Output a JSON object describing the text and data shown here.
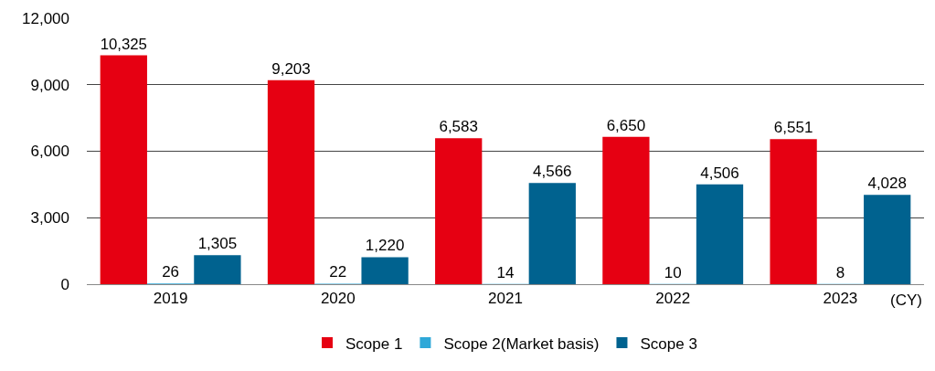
{
  "chart_data": {
    "type": "bar",
    "categories": [
      "2019",
      "2020",
      "2021",
      "2022",
      "2023"
    ],
    "series": [
      {
        "name": "Scope 1",
        "color": "#e60012",
        "values": [
          10325,
          9203,
          6583,
          6650,
          6551
        ],
        "value_labels": [
          "10,325",
          "9,203",
          "6,583",
          "6,650",
          "6,551"
        ]
      },
      {
        "name": "Scope 2(Market basis)",
        "color": "#2fa8d8",
        "values": [
          26,
          22,
          14,
          10,
          8
        ],
        "value_labels": [
          "26",
          "22",
          "14",
          "10",
          "8"
        ]
      },
      {
        "name": "Scope 3",
        "color": "#00628f",
        "values": [
          1305,
          1220,
          4566,
          4506,
          4028
        ],
        "value_labels": [
          "1,305",
          "1,220",
          "4,566",
          "4,506",
          "4,028"
        ]
      }
    ],
    "ylim": [
      0,
      12000
    ],
    "yticks": [
      0,
      {
        "value": 3000,
        "label": "3,000"
      },
      {
        "value": 6000,
        "label": "6,000"
      },
      {
        "value": 9000,
        "label": "9,000"
      },
      {
        "value": 12000,
        "label": "12,000"
      }
    ],
    "grid": "y",
    "legend": "bottom",
    "annotations": [
      "(CY)"
    ]
  }
}
